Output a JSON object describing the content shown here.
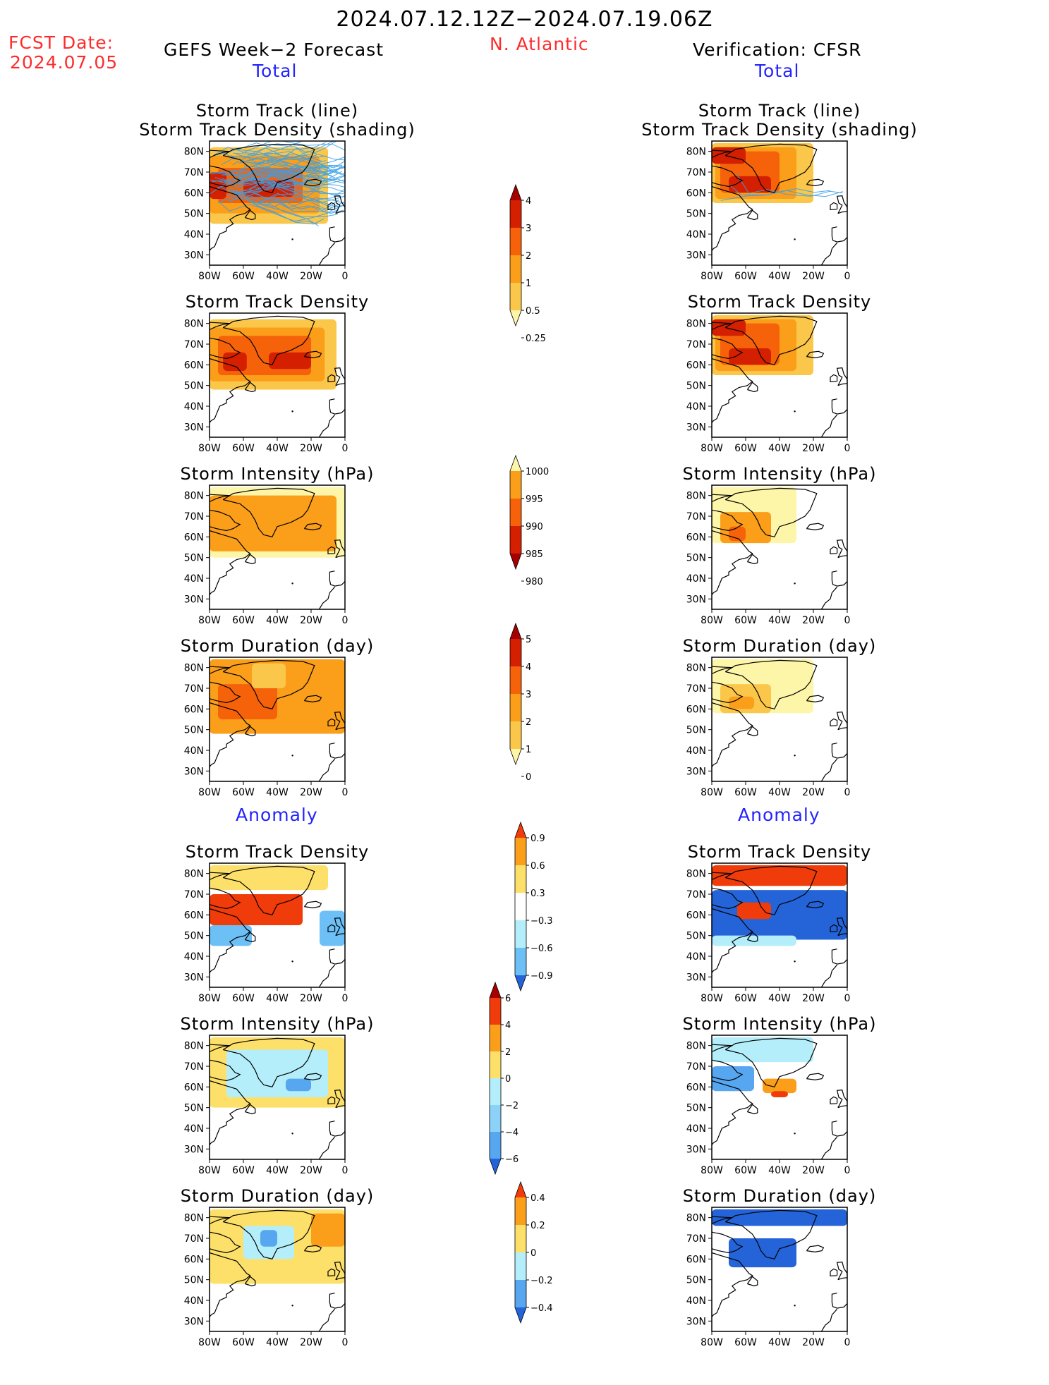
{
  "header": {
    "period": "2024.07.12.12Z−2024.07.19.06Z",
    "fcst_label": "FCST Date:",
    "fcst_date": "2024.07.05",
    "left_model": "GEFS Week−2 Forecast",
    "region": "N. Atlantic",
    "right_model": "Verification: CFSR",
    "left_total": "Total",
    "right_total": "Total",
    "left_anomaly": "Anomaly",
    "right_anomaly": "Anomaly"
  },
  "colors": {
    "header_red": "#ff2b2b",
    "header_blue": "#2323ff",
    "land_ocean": "#ffffff",
    "coast": "#000000",
    "track_line": "#3aa0e8"
  },
  "chart_data": [
    {
      "type": "heatmap",
      "panel": "gefs-total-track",
      "title_lines": [
        "Storm Track (line)",
        "Storm Track Density (shading)"
      ],
      "x_ticks": [
        "80W",
        "60W",
        "40W",
        "20W",
        "0"
      ],
      "y_ticks": [
        "80N",
        "70N",
        "60N",
        "50N",
        "40N",
        "30N"
      ],
      "xlim": [
        -80,
        0
      ],
      "ylim": [
        25,
        85
      ],
      "shading_scale": "density",
      "has_tracks": true,
      "cells": [
        {
          "lon": [
            -80,
            -10
          ],
          "lat": [
            45,
            82
          ],
          "level": 1
        },
        {
          "lon": [
            -80,
            -15
          ],
          "lat": [
            50,
            78
          ],
          "level": 2
        },
        {
          "lon": [
            -75,
            -25
          ],
          "lat": [
            55,
            72
          ],
          "level": 3
        },
        {
          "lon": [
            -80,
            -70
          ],
          "lat": [
            57,
            70
          ],
          "level": 4
        },
        {
          "lon": [
            -60,
            -30
          ],
          "lat": [
            58,
            66
          ],
          "level": 4
        }
      ]
    },
    {
      "type": "heatmap",
      "panel": "cfsr-total-track",
      "title_lines": [
        "Storm Track (line)",
        "Storm Track Density (shading)"
      ],
      "x_ticks": [
        "80W",
        "60W",
        "40W",
        "20W",
        "0"
      ],
      "y_ticks": [
        "80N",
        "70N",
        "60N",
        "50N",
        "40N",
        "30N"
      ],
      "xlim": [
        -80,
        0
      ],
      "ylim": [
        25,
        85
      ],
      "shading_scale": "density",
      "has_tracks": true,
      "cells": [
        {
          "lon": [
            -80,
            -20
          ],
          "lat": [
            55,
            84
          ],
          "level": 1
        },
        {
          "lon": [
            -78,
            -30
          ],
          "lat": [
            57,
            82
          ],
          "level": 2
        },
        {
          "lon": [
            -75,
            -40
          ],
          "lat": [
            60,
            80
          ],
          "level": 3
        },
        {
          "lon": [
            -70,
            -45
          ],
          "lat": [
            60,
            68
          ],
          "level": 4
        },
        {
          "lon": [
            -80,
            -60
          ],
          "lat": [
            74,
            82
          ],
          "level": 4
        }
      ]
    },
    {
      "type": "heatmap",
      "panel": "gefs-total-density",
      "title_lines": [
        "Storm Track Density"
      ],
      "x_ticks": [
        "80W",
        "60W",
        "40W",
        "20W",
        "0"
      ],
      "y_ticks": [
        "80N",
        "70N",
        "60N",
        "50N",
        "40N",
        "30N"
      ],
      "xlim": [
        -80,
        0
      ],
      "ylim": [
        25,
        85
      ],
      "shading_scale": "density",
      "cells": [
        {
          "lon": [
            -80,
            -5
          ],
          "lat": [
            48,
            82
          ],
          "level": 1
        },
        {
          "lon": [
            -80,
            -12
          ],
          "lat": [
            52,
            78
          ],
          "level": 2
        },
        {
          "lon": [
            -75,
            -20
          ],
          "lat": [
            55,
            74
          ],
          "level": 3
        },
        {
          "lon": [
            -72,
            -58
          ],
          "lat": [
            57,
            66
          ],
          "level": 4
        },
        {
          "lon": [
            -45,
            -20
          ],
          "lat": [
            58,
            66
          ],
          "level": 4
        }
      ]
    },
    {
      "type": "heatmap",
      "panel": "cfsr-total-density",
      "title_lines": [
        "Storm Track Density"
      ],
      "x_ticks": [
        "80W",
        "60W",
        "40W",
        "20W",
        "0"
      ],
      "y_ticks": [
        "80N",
        "70N",
        "60N",
        "50N",
        "40N",
        "30N"
      ],
      "xlim": [
        -80,
        0
      ],
      "ylim": [
        25,
        85
      ],
      "shading_scale": "density",
      "cells": [
        {
          "lon": [
            -80,
            -20
          ],
          "lat": [
            55,
            84
          ],
          "level": 1
        },
        {
          "lon": [
            -78,
            -30
          ],
          "lat": [
            57,
            82
          ],
          "level": 2
        },
        {
          "lon": [
            -75,
            -40
          ],
          "lat": [
            60,
            80
          ],
          "level": 3
        },
        {
          "lon": [
            -70,
            -45
          ],
          "lat": [
            60,
            68
          ],
          "level": 4
        },
        {
          "lon": [
            -80,
            -60
          ],
          "lat": [
            74,
            82
          ],
          "level": 4
        }
      ]
    },
    {
      "type": "heatmap",
      "panel": "gefs-total-intensity",
      "title_lines": [
        "Storm Intensity (hPa)"
      ],
      "x_ticks": [
        "80W",
        "60W",
        "40W",
        "20W",
        "0"
      ],
      "y_ticks": [
        "80N",
        "70N",
        "60N",
        "50N",
        "40N",
        "30N"
      ],
      "xlim": [
        -80,
        0
      ],
      "ylim": [
        25,
        85
      ],
      "shading_scale": "intensity",
      "cells": [
        {
          "lon": [
            -80,
            0
          ],
          "lat": [
            50,
            84
          ],
          "level": 0
        },
        {
          "lon": [
            -80,
            -5
          ],
          "lat": [
            53,
            80
          ],
          "level": 1
        },
        {
          "lon": [
            -70,
            -40
          ],
          "lat": [
            55,
            64
          ],
          "level": 1
        }
      ]
    },
    {
      "type": "heatmap",
      "panel": "cfsr-total-intensity",
      "title_lines": [
        "Storm Intensity (hPa)"
      ],
      "x_ticks": [
        "80W",
        "60W",
        "40W",
        "20W",
        "0"
      ],
      "y_ticks": [
        "80N",
        "70N",
        "60N",
        "50N",
        "40N",
        "30N"
      ],
      "xlim": [
        -80,
        0
      ],
      "ylim": [
        25,
        85
      ],
      "shading_scale": "intensity",
      "cells": [
        {
          "lon": [
            -80,
            -30
          ],
          "lat": [
            57,
            84
          ],
          "level": 0
        },
        {
          "lon": [
            -75,
            -45
          ],
          "lat": [
            57,
            72
          ],
          "level": 1
        },
        {
          "lon": [
            -70,
            -60
          ],
          "lat": [
            58,
            65
          ],
          "level": 2
        }
      ]
    },
    {
      "type": "heatmap",
      "panel": "gefs-total-duration",
      "title_lines": [
        "Storm Duration (day)"
      ],
      "x_ticks": [
        "80W",
        "60W",
        "40W",
        "20W",
        "0"
      ],
      "y_ticks": [
        "80N",
        "70N",
        "60N",
        "50N",
        "40N",
        "30N"
      ],
      "xlim": [
        -80,
        0
      ],
      "ylim": [
        25,
        85
      ],
      "shading_scale": "duration",
      "cells": [
        {
          "lon": [
            -80,
            0
          ],
          "lat": [
            48,
            84
          ],
          "level": 2
        },
        {
          "lon": [
            -75,
            -40
          ],
          "lat": [
            55,
            72
          ],
          "level": 3
        },
        {
          "lon": [
            -55,
            -35
          ],
          "lat": [
            70,
            82
          ],
          "level": 1
        }
      ]
    },
    {
      "type": "heatmap",
      "panel": "cfsr-total-duration",
      "title_lines": [
        "Storm Duration (day)"
      ],
      "x_ticks": [
        "80W",
        "60W",
        "40W",
        "20W",
        "0"
      ],
      "y_ticks": [
        "80N",
        "70N",
        "60N",
        "50N",
        "40N",
        "30N"
      ],
      "xlim": [
        -80,
        0
      ],
      "ylim": [
        25,
        85
      ],
      "shading_scale": "duration",
      "cells": [
        {
          "lon": [
            -80,
            -20
          ],
          "lat": [
            58,
            84
          ],
          "level": 0
        },
        {
          "lon": [
            -75,
            -45
          ],
          "lat": [
            58,
            72
          ],
          "level": 1
        },
        {
          "lon": [
            -70,
            -55
          ],
          "lat": [
            60,
            66
          ],
          "level": 2
        }
      ]
    },
    {
      "type": "heatmap",
      "panel": "gefs-anom-density",
      "title_lines": [
        "Storm Track Density"
      ],
      "x_ticks": [
        "80W",
        "60W",
        "40W",
        "20W",
        "0"
      ],
      "y_ticks": [
        "80N",
        "70N",
        "60N",
        "50N",
        "40N",
        "30N"
      ],
      "xlim": [
        -80,
        0
      ],
      "ylim": [
        25,
        85
      ],
      "shading_scale": "anom_density",
      "cells": [
        {
          "lon": [
            -80,
            -10
          ],
          "lat": [
            72,
            84
          ],
          "level": 3
        },
        {
          "lon": [
            -80,
            -25
          ],
          "lat": [
            55,
            70
          ],
          "level": 5
        },
        {
          "lon": [
            -80,
            -55
          ],
          "lat": [
            45,
            55
          ],
          "level": 2
        },
        {
          "lon": [
            -15,
            0
          ],
          "lat": [
            45,
            62
          ],
          "level": 2
        }
      ]
    },
    {
      "type": "heatmap",
      "panel": "cfsr-anom-density",
      "title_lines": [
        "Storm Track Density"
      ],
      "x_ticks": [
        "80W",
        "60W",
        "40W",
        "20W",
        "0"
      ],
      "y_ticks": [
        "80N",
        "70N",
        "60N",
        "50N",
        "40N",
        "30N"
      ],
      "xlim": [
        -80,
        0
      ],
      "ylim": [
        25,
        85
      ],
      "shading_scale": "anom_density",
      "cells": [
        {
          "lon": [
            -80,
            0
          ],
          "lat": [
            74,
            84
          ],
          "level": 5
        },
        {
          "lon": [
            -80,
            0
          ],
          "lat": [
            48,
            72
          ],
          "level": 0
        },
        {
          "lon": [
            -65,
            -45
          ],
          "lat": [
            58,
            66
          ],
          "level": 5
        },
        {
          "lon": [
            -80,
            -30
          ],
          "lat": [
            45,
            50
          ],
          "level": 1
        }
      ]
    },
    {
      "type": "heatmap",
      "panel": "gefs-anom-intensity",
      "title_lines": [
        "Storm Intensity (hPa)"
      ],
      "x_ticks": [
        "80W",
        "60W",
        "40W",
        "20W",
        "0"
      ],
      "y_ticks": [
        "80N",
        "70N",
        "60N",
        "50N",
        "40N",
        "30N"
      ],
      "xlim": [
        -80,
        0
      ],
      "ylim": [
        25,
        85
      ],
      "shading_scale": "anom_intensity",
      "cells": [
        {
          "lon": [
            -80,
            0
          ],
          "lat": [
            50,
            84
          ],
          "level": 3
        },
        {
          "lon": [
            -70,
            -10
          ],
          "lat": [
            55,
            78
          ],
          "level": 2
        },
        {
          "lon": [
            -35,
            -20
          ],
          "lat": [
            58,
            64
          ],
          "level": 1
        }
      ]
    },
    {
      "type": "heatmap",
      "panel": "cfsr-anom-intensity",
      "title_lines": [
        "Storm Intensity (hPa)"
      ],
      "x_ticks": [
        "80W",
        "60W",
        "40W",
        "20W",
        "0"
      ],
      "y_ticks": [
        "80N",
        "70N",
        "60N",
        "50N",
        "40N",
        "30N"
      ],
      "xlim": [
        -80,
        0
      ],
      "ylim": [
        25,
        85
      ],
      "shading_scale": "anom_intensity",
      "cells": [
        {
          "lon": [
            -80,
            -20
          ],
          "lat": [
            72,
            84
          ],
          "level": 2
        },
        {
          "lon": [
            -80,
            -55
          ],
          "lat": [
            58,
            70
          ],
          "level": 1
        },
        {
          "lon": [
            -50,
            -30
          ],
          "lat": [
            57,
            64
          ],
          "level": 4
        },
        {
          "lon": [
            -45,
            -35
          ],
          "lat": [
            55,
            58
          ],
          "level": 5
        }
      ]
    },
    {
      "type": "heatmap",
      "panel": "gefs-anom-duration",
      "title_lines": [
        "Storm Duration (day)"
      ],
      "x_ticks": [
        "80W",
        "60W",
        "40W",
        "20W",
        "0"
      ],
      "y_ticks": [
        "80N",
        "70N",
        "60N",
        "50N",
        "40N",
        "30N"
      ],
      "xlim": [
        -80,
        0
      ],
      "ylim": [
        25,
        85
      ],
      "shading_scale": "anom_duration",
      "cells": [
        {
          "lon": [
            -80,
            0
          ],
          "lat": [
            48,
            84
          ],
          "level": 3
        },
        {
          "lon": [
            -60,
            -30
          ],
          "lat": [
            60,
            76
          ],
          "level": 2
        },
        {
          "lon": [
            -50,
            -40
          ],
          "lat": [
            66,
            74
          ],
          "level": 1
        },
        {
          "lon": [
            -20,
            0
          ],
          "lat": [
            66,
            82
          ],
          "level": 4
        }
      ]
    },
    {
      "type": "heatmap",
      "panel": "cfsr-anom-duration",
      "title_lines": [
        "Storm Duration (day)"
      ],
      "x_ticks": [
        "80W",
        "60W",
        "40W",
        "20W",
        "0"
      ],
      "y_ticks": [
        "80N",
        "70N",
        "60N",
        "50N",
        "40N",
        "30N"
      ],
      "xlim": [
        -80,
        0
      ],
      "ylim": [
        25,
        85
      ],
      "shading_scale": "anom_duration",
      "cells": [
        {
          "lon": [
            -80,
            0
          ],
          "lat": [
            76,
            84
          ],
          "level": 0
        },
        {
          "lon": [
            -70,
            -30
          ],
          "lat": [
            56,
            70
          ],
          "level": 0
        }
      ]
    }
  ],
  "colorbars": {
    "density": {
      "labels": [
        "4",
        "3",
        "2",
        "1",
        "0.5",
        "0.25"
      ],
      "colors": [
        "#a50000",
        "#d42000",
        "#f5620a",
        "#fb9e1a",
        "#fbc74a",
        "#fdf5a8"
      ]
    },
    "intensity": {
      "labels": [
        "1000",
        "995",
        "990",
        "985",
        "980"
      ],
      "colors": [
        "#fdf5a8",
        "#fb9e1a",
        "#f5620a",
        "#d42000",
        "#a50000"
      ]
    },
    "duration": {
      "labels": [
        "5",
        "4",
        "3",
        "2",
        "1",
        "0"
      ],
      "colors": [
        "#a50000",
        "#d42000",
        "#f5620a",
        "#fb9e1a",
        "#fbc74a",
        "#fdf5a8"
      ]
    },
    "anom_density": {
      "labels": [
        "0.9",
        "0.6",
        "0.3",
        "−0.3",
        "−0.6",
        "−0.9"
      ],
      "colors": [
        "#f03c0a",
        "#fb9e1a",
        "#fde06a",
        "#ffffff",
        "#b4eefa",
        "#6cc0f5",
        "#2464d8"
      ]
    },
    "anom_intensity": {
      "labels": [
        "6",
        "4",
        "2",
        "0",
        "−2",
        "−4",
        "−6"
      ],
      "colors": [
        "#a50000",
        "#f03c0a",
        "#fb9e1a",
        "#fde06a",
        "#b4eefa",
        "#8cd2f8",
        "#56a6f0",
        "#2464d8"
      ]
    },
    "anom_duration": {
      "labels": [
        "0.4",
        "0.2",
        "0",
        "−0.2",
        "−0.4"
      ],
      "colors": [
        "#f03c0a",
        "#fb9e1a",
        "#fde06a",
        "#b4eefa",
        "#56a6f0",
        "#2464d8"
      ]
    }
  }
}
